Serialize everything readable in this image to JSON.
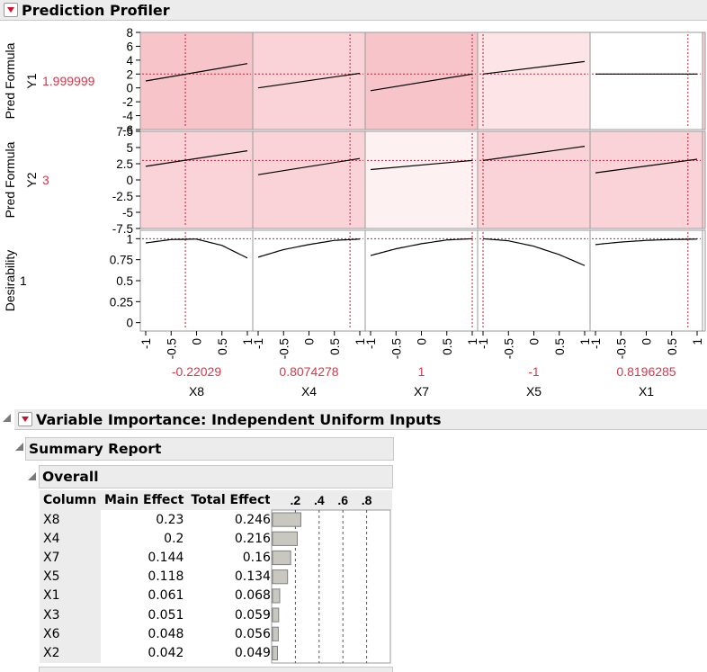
{
  "profiler": {
    "title": "Prediction Profiler",
    "rows": [
      {
        "label": "Pred Formula Y1",
        "label_line1": "Pred Formula",
        "label_line2": "Y1",
        "value": "1.999999",
        "ticks": [
          "8",
          "6",
          "4",
          "2",
          "0",
          "-2",
          "-4",
          "-6"
        ]
      },
      {
        "label": "Pred Formula Y2",
        "label_line1": "Pred Formula",
        "label_line2": "Y2",
        "value": "3",
        "ticks": [
          "7.5",
          "5",
          "2.5",
          "0",
          "-2.5",
          "-5",
          "-7.5"
        ]
      },
      {
        "label": "Desirability",
        "label_line1": "Desirability",
        "label_line2": "",
        "value": "1",
        "ticks": [
          "1",
          "0.75",
          "0.5",
          "0.25",
          "0"
        ]
      }
    ],
    "x_ticks": [
      "-1",
      "-0.5",
      "0",
      "0.5",
      "1"
    ],
    "factors": [
      {
        "name": "X8",
        "value": "-0.22029",
        "num": -0.22029
      },
      {
        "name": "X4",
        "value": "0.8074278",
        "num": 0.8074278
      },
      {
        "name": "X7",
        "value": "1",
        "num": 1
      },
      {
        "name": "X5",
        "value": "-1",
        "num": -1
      },
      {
        "name": "X1",
        "value": "0.8196285",
        "num": 0.8196285
      }
    ],
    "y1_traces": [
      {
        "y_at_min": 1.0,
        "y_at_max": 3.5
      },
      {
        "y_at_min": 0.0,
        "y_at_max": 2.1
      },
      {
        "y_at_min": -0.4,
        "y_at_max": 2.0
      },
      {
        "y_at_min": 2.0,
        "y_at_max": 3.8
      },
      {
        "y_at_min": 2.0,
        "y_at_max": 2.0
      }
    ],
    "y2_traces": [
      {
        "y_at_min": 2.1,
        "y_at_max": 4.5
      },
      {
        "y_at_min": 0.8,
        "y_at_max": 3.3
      },
      {
        "y_at_min": 1.6,
        "y_at_max": 3.0
      },
      {
        "y_at_min": 3.0,
        "y_at_max": 5.2
      },
      {
        "y_at_min": 1.1,
        "y_at_max": 3.2
      }
    ],
    "desirability_traces": [
      {
        "points": [
          [
            -1,
            0.95
          ],
          [
            -0.5,
            0.99
          ],
          [
            0,
            0.995
          ],
          [
            0.5,
            0.92
          ],
          [
            1,
            0.77
          ]
        ]
      },
      {
        "points": [
          [
            -1,
            0.78
          ],
          [
            -0.5,
            0.87
          ],
          [
            0,
            0.93
          ],
          [
            0.5,
            0.98
          ],
          [
            1,
            0.995
          ]
        ]
      },
      {
        "points": [
          [
            -1,
            0.8
          ],
          [
            -0.5,
            0.88
          ],
          [
            0,
            0.94
          ],
          [
            0.5,
            0.985
          ],
          [
            1,
            1.0
          ]
        ]
      },
      {
        "points": [
          [
            -1,
            1.0
          ],
          [
            -0.5,
            0.975
          ],
          [
            0,
            0.91
          ],
          [
            0.5,
            0.81
          ],
          [
            1,
            0.68
          ]
        ]
      },
      {
        "points": [
          [
            -1,
            0.93
          ],
          [
            -0.5,
            0.96
          ],
          [
            0,
            0.98
          ],
          [
            0.5,
            0.99
          ],
          [
            1,
            0.995
          ]
        ]
      }
    ],
    "y1_current": 1.999999,
    "y2_current": 3,
    "d_current": 1
  },
  "variable_importance": {
    "title": "Variable Importance: Independent Uniform Inputs",
    "summary_title": "Summary Report",
    "overall_title": "Overall",
    "headers": [
      "Column",
      "Main Effect",
      "Total Effect"
    ],
    "bar_ticks": [
      ".2",
      ".4",
      ".6",
      ".8"
    ],
    "rows": [
      {
        "column": "X8",
        "main": "0.23",
        "total": "0.246",
        "total_num": 0.246
      },
      {
        "column": "X4",
        "main": "0.2",
        "total": "0.216",
        "total_num": 0.216
      },
      {
        "column": "X7",
        "main": "0.144",
        "total": "0.16",
        "total_num": 0.16
      },
      {
        "column": "X5",
        "main": "0.118",
        "total": "0.134",
        "total_num": 0.134
      },
      {
        "column": "X1",
        "main": "0.061",
        "total": "0.068",
        "total_num": 0.068
      },
      {
        "column": "X3",
        "main": "0.051",
        "total": "0.059",
        "total_num": 0.059
      },
      {
        "column": "X6",
        "main": "0.048",
        "total": "0.056",
        "total_num": 0.056
      },
      {
        "column": "X2",
        "main": "0.042",
        "total": "0.049",
        "total_num": 0.049
      }
    ]
  },
  "colors": {
    "accent_red": "#d0102a",
    "value_red": "#d03a4a",
    "panel_shades": [
      [
        "#f7c4ca",
        "#f9d3d8",
        "#f7c4ca",
        "#fce4e7",
        "#ffffff"
      ],
      [
        "#f9d3d8",
        "#f9d3d8",
        "#fdf1f2",
        "#f9d3d8",
        "#f9d3d8"
      ]
    ]
  }
}
